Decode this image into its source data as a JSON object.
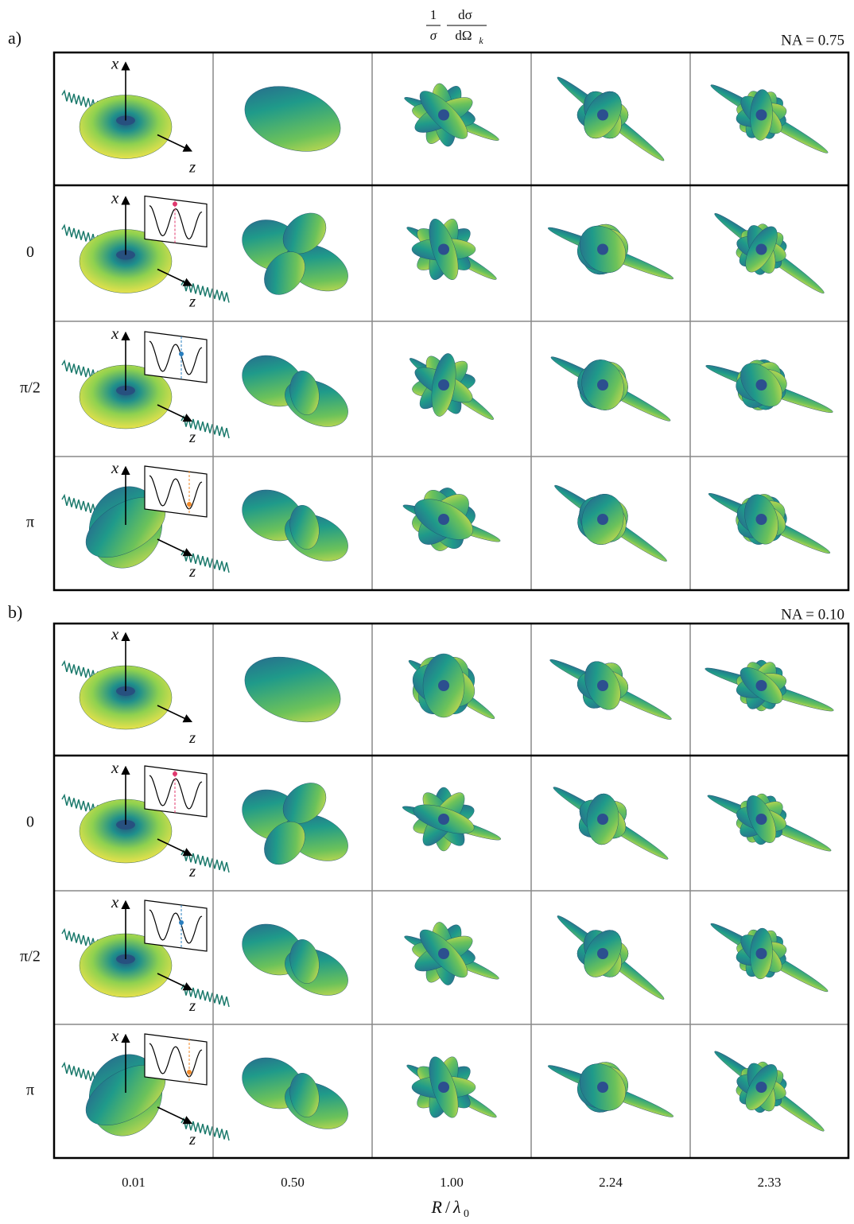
{
  "quantity": {
    "numerator": "1",
    "denominator": "σ",
    "diff_numerator": "dσ",
    "diff_denominator": "dΩ",
    "diff_subscript": "k"
  },
  "panels": [
    {
      "label": "a)",
      "aperture": "NA = 0.75",
      "row_labels": [
        "0",
        "π/2",
        "π"
      ]
    },
    {
      "label": "b)",
      "aperture": "NA = 0.10",
      "row_labels": [
        "0",
        "π/2",
        "π"
      ]
    }
  ],
  "axis_labels": {
    "x": "x",
    "z": "z"
  },
  "columns": [
    "0.01",
    "0.50",
    "1.00",
    "2.24",
    "2.33"
  ],
  "x_axis": {
    "symbol": "R",
    "divisor": "λ",
    "subscript": "0"
  }
}
